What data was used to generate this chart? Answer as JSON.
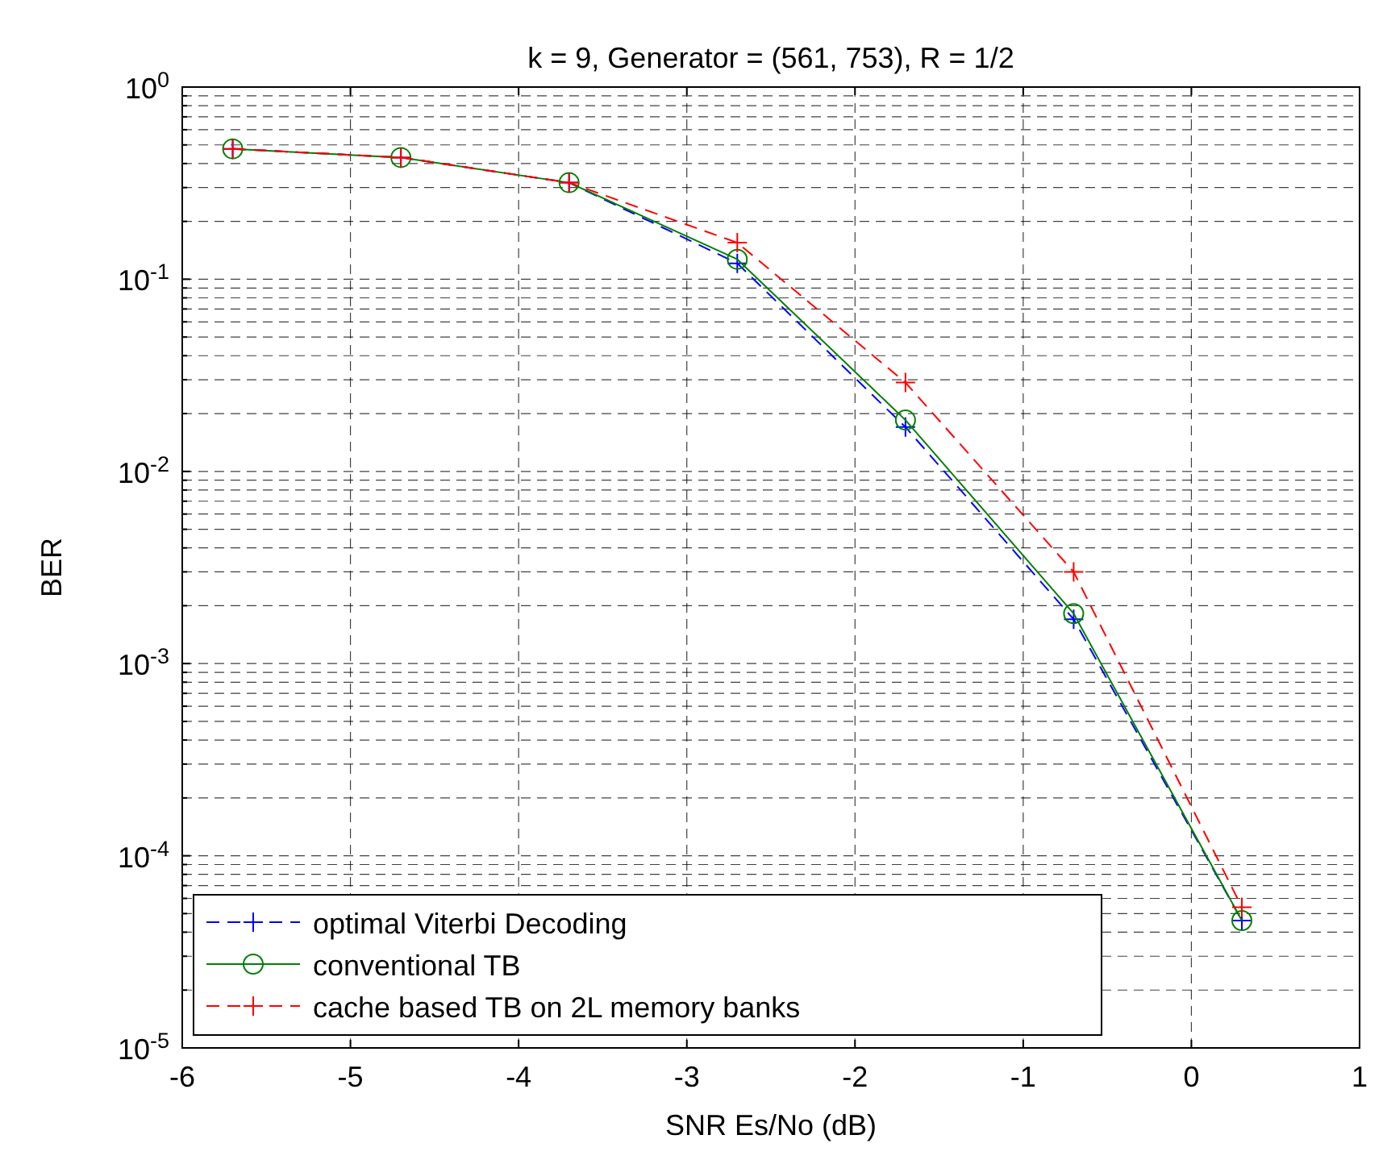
{
  "chart_data": {
    "type": "line",
    "title": "k = 9, Generator = (561, 753), R = 1/2",
    "xlabel": "SNR Es/No (dB)",
    "ylabel": "BER",
    "x": [
      -5.7,
      -4.7,
      -3.7,
      -2.7,
      -1.7,
      -0.7,
      0.3
    ],
    "series": [
      {
        "name": "optimal Viterbi Decoding",
        "color": "#0000ff",
        "marker": "cross",
        "line_style": "dashed",
        "values": [
          0.477,
          0.43,
          0.318,
          0.121,
          0.017,
          0.0017,
          4.6e-05
        ]
      },
      {
        "name": "conventional TB",
        "color": "#008000",
        "marker": "circle",
        "line_style": "solid",
        "values": [
          0.477,
          0.43,
          0.318,
          0.127,
          0.0185,
          0.00182,
          4.6e-05
        ]
      },
      {
        "name": "cache based TB on 2L memory banks",
        "color": "#ff0000",
        "marker": "cross",
        "line_style": "dashed",
        "values": [
          0.477,
          0.43,
          0.318,
          0.155,
          0.029,
          0.003,
          5.4e-05
        ]
      }
    ],
    "log": "y",
    "xlim": [
      -6,
      1
    ],
    "xticks": [
      -6,
      -5,
      -4,
      -3,
      -2,
      -1,
      0,
      1
    ],
    "ylim": [
      1e-05,
      1
    ],
    "yticks": [
      {
        "value": 1e-05,
        "label": "10$^{-5}$"
      },
      {
        "value": 0.0001,
        "label": "10$^{-4}$"
      },
      {
        "value": 0.001,
        "label": "10$^{-3}$"
      },
      {
        "value": 0.01,
        "label": "10$^{-2}$"
      },
      {
        "value": 0.1,
        "label": "10$^{-1}$"
      },
      {
        "value": 1,
        "label": "10$^{0}$"
      }
    ],
    "grid": true,
    "legend": "bottom left"
  }
}
